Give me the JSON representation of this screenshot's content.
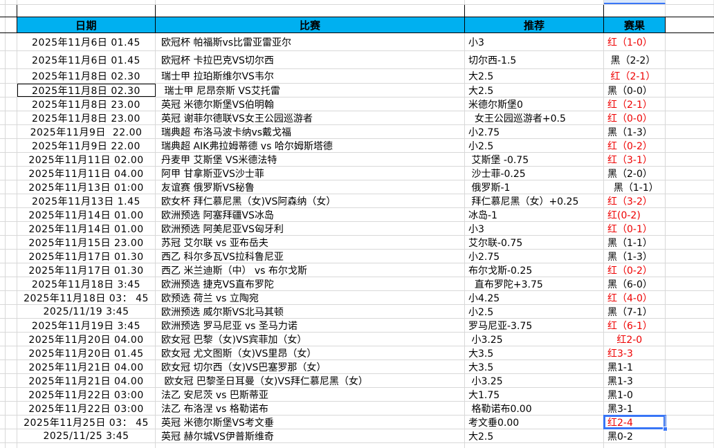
{
  "colors": {
    "header_bg": "#00B0F0",
    "red": "#EE0000",
    "black": "#000000",
    "grid": "#D8D8D8",
    "selection_blue": "#3875F6"
  },
  "headers": {
    "date": "日期",
    "match": "比赛",
    "tip": "推荐",
    "result": "赛果"
  },
  "rows": [
    {
      "date": "2025年11月6日 01.45",
      "match": "欧冠杯 帕福斯vs比雷亚雷亚尔",
      "tip": "小3",
      "result": "红（1-0）",
      "result_color": "red"
    },
    {
      "date": "2025年11月6日 01.45",
      "match": "欧冠杯 卡拉巴克VS切尔西",
      "tip": "切尔西-1.5",
      "result": " 黑（2-2）",
      "result_color": "black"
    },
    {
      "date": "2025年11月8日 02.30",
      "match": "瑞士甲 拉珀斯维尔VS韦尔",
      "tip": "大2.5",
      "result": " 红（2-1）",
      "result_color": "red"
    },
    {
      "date": "2025年11月8日 02.30",
      "match": " 瑞士甲 尼昂奈斯 VS艾托雷",
      "tip": "大2.5",
      "result": "黑（0-0）",
      "result_color": "black",
      "date_bordered": true
    },
    {
      "date": "2025年11月8日 23.00",
      "match": "英冠 米德尔斯堡VS伯明翰",
      "tip": "米德尔斯堡0",
      "result": "红（2-1）",
      "result_color": "red"
    },
    {
      "date": "2025年11月8日 23.00",
      "match": "英冠 谢菲尔德联VS女王公园巡游者",
      "tip": "  女王公园巡游者+0.5",
      "result": "红（0-0）",
      "result_color": "red"
    },
    {
      "date": "2025年11月9日  22.00",
      "match": "瑞典超 布洛马波卡纳vs戴戈福",
      "tip": "小2.75",
      "result": "黑（1-3）",
      "result_color": "black"
    },
    {
      "date": "2025年11月9日 22.00",
      "match": "瑞典超 AIK弗拉姆蒂德 vs 哈尔姆斯塔德",
      "tip": "小2.5",
      "result": "红（0-2）",
      "result_color": "red"
    },
    {
      "date": "2025年11月11日 02.00",
      "match": "丹麦甲 艾斯堡 VS米德法特",
      "tip": " 艾斯堡 -0.75",
      "result": "红（3-1）",
      "result_color": "red"
    },
    {
      "date": "2025年11月11日 04.00",
      "match": "阿甲 甘拿斯亚VS沙士菲",
      "tip": " 沙士菲-0.25",
      "result": "黑（2-0）",
      "result_color": "black"
    },
    {
      "date": "2025年11月13日 01:00",
      "match": "友谊赛 俄罗斯VS秘鲁",
      "tip": " 俄罗斯-1",
      "result": "  黑（1-1）",
      "result_color": "black"
    },
    {
      "date": "2025年11月13日 1.45",
      "match": "欧女杯 拜仁慕尼黑（女)VS阿森纳（女）",
      "tip": " 拜仁慕尼黑（女）+0.25",
      "result": "红（3-2）",
      "result_color": "red"
    },
    {
      "date": "2025年11月14日 01.00",
      "match": "欧洲预选 阿塞拜疆VS冰岛",
      "tip": "冰岛-1",
      "result": "红(0-2)",
      "result_color": "red"
    },
    {
      "date": "2025年11月14日 01.00",
      "match": "欧洲预选 阿美尼亚VS匈牙利",
      "tip": "小3",
      "result": "红（0-1）",
      "result_color": "red"
    },
    {
      "date": "2025年11月15日 23.00",
      "match": "苏冠 艾尔联 vs 亚布岳夫",
      "tip": "艾尔联-0.75",
      "result": "黑（1-1）",
      "result_color": "black"
    },
    {
      "date": "2025年11月17日 01.30",
      "match": "西乙 科尔多瓦VS拉科鲁尼亚",
      "tip": "小2.75",
      "result": "黑（1-3）",
      "result_color": "black"
    },
    {
      "date": "2025年11月17日 01.30",
      "match": "西乙 米兰迪斯（中） vs 布尔戈斯",
      "tip": "布尔戈斯-0.25",
      "result": "红（0-2）",
      "result_color": "red"
    },
    {
      "date": "2025年11月18日 3:45",
      "match": "欧洲预选 捷克VS直布罗陀",
      "tip": "  直布罗陀+3.75",
      "result": "黑（6-0）",
      "result_color": "black"
    },
    {
      "date": "2025年11月18日 03： 45",
      "match": "欧预选 荷兰 vs 立陶宛",
      "tip": "小4.25",
      "result": "红（4-0）",
      "result_color": "red"
    },
    {
      "date": "2025/11/19 3:45",
      "match": "欧洲预选 威尔斯VS北马其顿",
      "tip": "小2.5",
      "result": "黑（7-1）",
      "result_color": "black"
    },
    {
      "date": "2025年11月19日 3:45",
      "match": "欧洲预选 罗马尼亚 vs 圣马力诺",
      "tip": "罗马尼亚-3.75",
      "result": "红（6-1）",
      "result_color": "red"
    },
    {
      "date": "2025年11月20日 04.00",
      "match": "欧女冠 巴黎（女)VS宾菲加（女）",
      "tip": " 小3.25",
      "result": "   红2-0",
      "result_color": "red"
    },
    {
      "date": "2025年11月20日 01.45",
      "match": "欧女冠 尤文图斯（女)VS里昂（女）",
      "tip": "大3.5",
      "result": "红3-3",
      "result_color": "red"
    },
    {
      "date": "2025年11月21日 04.00",
      "match": "欧女冠 切尔西（女)VS巴塞罗那（女）",
      "tip": "大3.5",
      "result": "黑1-1",
      "result_color": "black"
    },
    {
      "date": "2025年11月21日 04.00",
      "match": " 欧女冠 巴黎圣日耳曼（女)VS拜仁慕尼黑（女）",
      "tip": " 小3.25",
      "result": "黑1-3",
      "result_color": "black"
    },
    {
      "date": "2025年11月22日 03:00",
      "match": "法乙 安尼茨 vs 巴斯蒂亚",
      "tip": "大1.75",
      "result": "黑1-0",
      "result_color": "black"
    },
    {
      "date": "2025年11月22日 03:00",
      "match": "法乙 布洛涅 vs 格勒诺布",
      "tip": " 格勒诺布0.00",
      "result": "黑3-1",
      "result_color": "black"
    },
    {
      "date": "2025年11月25日 03： 45",
      "match": "英冠 米德尔斯堡VS考文垂",
      "tip": "考文垂0.00",
      "result": "红2-4",
      "result_color": "red",
      "selected": true
    },
    {
      "date": "2025/11/25 3:45",
      "match": "英冠 赫尔城VS伊普斯维奇",
      "tip": "大2.5",
      "result": "黑0-2",
      "result_color": "black"
    }
  ]
}
